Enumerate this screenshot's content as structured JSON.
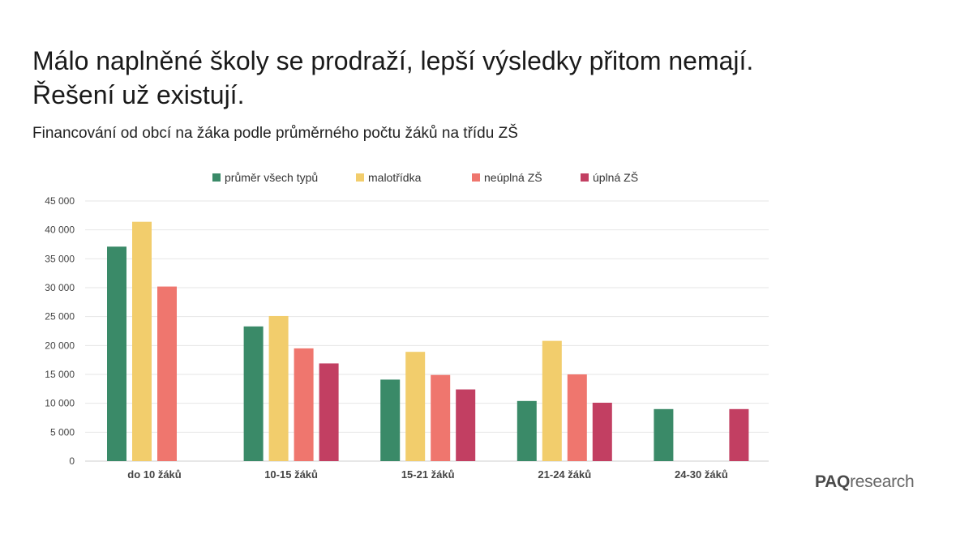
{
  "title_lines": [
    "Málo naplněné školy se prodraží, lepší výsledky přitom nemají.",
    "Řešení už existují."
  ],
  "subtitle": "Financování od obcí na žáka podle průměrného počtu žáků na třídu ZŠ",
  "logo": {
    "bold": "PAQ",
    "light": "research"
  },
  "chart_data": {
    "type": "bar",
    "title": "Málo naplněné školy se prodraží, lepší výsledky přitom nemají. Řešení už existují.",
    "subtitle": "Financování od obcí na žáka podle průměrného počtu žáků na třídu ZŠ",
    "categories": [
      "do 10 žáků",
      "10-15 žáků",
      "15-21 žáků",
      "21-24 žáků",
      "24-30 žáků"
    ],
    "series": [
      {
        "name": "průměr všech typů",
        "color": "#3a8a68",
        "values": [
          37100,
          23300,
          14100,
          10400,
          9000
        ]
      },
      {
        "name": "malotřídka",
        "color": "#f2cd6c",
        "values": [
          41400,
          25100,
          18900,
          20800,
          null
        ]
      },
      {
        "name": "neúplná ZŠ",
        "color": "#ef766e",
        "values": [
          30200,
          19500,
          14900,
          15000,
          null
        ]
      },
      {
        "name": "úplná ZŠ",
        "color": "#c23f62",
        "values": [
          null,
          16900,
          12400,
          10100,
          9000
        ]
      }
    ],
    "y_ticks": [
      "0",
      "5 000",
      "10 000",
      "15 000",
      "20 000",
      "25 000",
      "30 000",
      "35 000",
      "40 000",
      "45 000"
    ],
    "ylim": [
      0,
      45000
    ],
    "y_step": 5000,
    "grid": true,
    "legend_position": "top"
  }
}
